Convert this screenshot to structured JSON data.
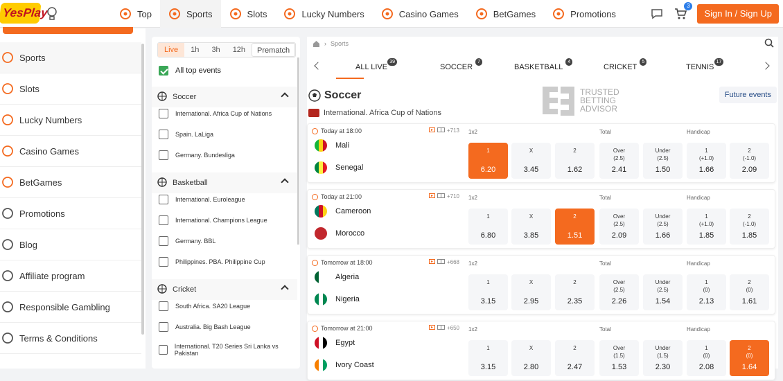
{
  "header": {
    "logo": "YesPlay",
    "nav": [
      {
        "label": "Top",
        "icon": "fire-icon"
      },
      {
        "label": "Sports",
        "icon": "soccer-ball-icon"
      },
      {
        "label": "Slots",
        "icon": "slots-icon"
      },
      {
        "label": "Lucky Numbers",
        "icon": "lottery-balls-icon"
      },
      {
        "label": "Casino Games",
        "icon": "casino-icon"
      },
      {
        "label": "BetGames",
        "icon": "betgames-icon"
      },
      {
        "label": "Promotions",
        "icon": "megaphone-icon"
      }
    ],
    "cart_count": "3",
    "signin": "Sign In / Sign Up"
  },
  "sidebar": {
    "items": [
      {
        "label": "Sports"
      },
      {
        "label": "Slots"
      },
      {
        "label": "Lucky Numbers"
      },
      {
        "label": "Casino Games"
      },
      {
        "label": "BetGames"
      },
      {
        "label": "Promotions"
      },
      {
        "label": "Blog"
      },
      {
        "label": "Affiliate program"
      },
      {
        "label": "Responsible Gambling"
      },
      {
        "label": "Terms & Conditions"
      }
    ]
  },
  "filter": {
    "tabs": [
      "Live",
      "1h",
      "3h",
      "12h",
      "Prematch"
    ],
    "all_top": "All top events",
    "sports": [
      {
        "name": "Soccer",
        "leagues": [
          "International. Africa Cup of Nations",
          "Spain. LaLiga",
          "Germany. Bundesliga"
        ]
      },
      {
        "name": "Basketball",
        "leagues": [
          "International. Euroleague",
          "International. Champions League",
          "Germany. BBL",
          "Philippines. PBA. Philippine Cup"
        ]
      },
      {
        "name": "Cricket",
        "leagues": [
          "South Africa. SA20 League",
          "Australia. Big Bash League",
          "International. T20 Series Sri Lanka vs Pakistan"
        ]
      }
    ]
  },
  "main": {
    "crumb": "Sports",
    "tabs": [
      {
        "label": "ALL LIVE",
        "count": "39"
      },
      {
        "label": "SOCCER",
        "count": "7"
      },
      {
        "label": "BASKETBALL",
        "count": "4"
      },
      {
        "label": "CRICKET",
        "count": "5"
      },
      {
        "label": "TENNIS",
        "count": "17"
      }
    ],
    "sport_title": "Soccer",
    "tba": [
      "TRUSTED",
      "BETTING",
      "ADVISOR"
    ],
    "future": "Future events",
    "league": "International. Africa Cup of Nations",
    "markets": {
      "m1x2": "1x2",
      "total": "Total",
      "handicap": "Handicap"
    },
    "matches": [
      {
        "time": "Today at 18:00",
        "extra": "+713",
        "home": "Mali",
        "away": "Senegal",
        "odds": [
          [
            "1",
            "6.20"
          ],
          [
            "X",
            "3.45"
          ],
          [
            "2",
            "1.62"
          ],
          [
            "Over\n(2.5)",
            "2.41"
          ],
          [
            "Under\n(2.5)",
            "1.50"
          ],
          [
            "1\n(+1.0)",
            "1.66"
          ],
          [
            "2\n(-1.0)",
            "2.09"
          ]
        ],
        "sel": 0
      },
      {
        "time": "Today at 21:00",
        "extra": "+710",
        "home": "Cameroon",
        "away": "Morocco",
        "odds": [
          [
            "1",
            "6.80"
          ],
          [
            "X",
            "3.85"
          ],
          [
            "2",
            "1.51"
          ],
          [
            "Over\n(2.5)",
            "2.09"
          ],
          [
            "Under\n(2.5)",
            "1.66"
          ],
          [
            "1\n(+1.0)",
            "1.85"
          ],
          [
            "2\n(-1.0)",
            "1.85"
          ]
        ],
        "sel": 2
      },
      {
        "time": "Tomorrow at 18:00",
        "extra": "+668",
        "home": "Algeria",
        "away": "Nigeria",
        "odds": [
          [
            "1",
            "3.15"
          ],
          [
            "X",
            "2.95"
          ],
          [
            "2",
            "2.35"
          ],
          [
            "Over\n(2.5)",
            "2.26"
          ],
          [
            "Under\n(2.5)",
            "1.54"
          ],
          [
            "1\n(0)",
            "2.13"
          ],
          [
            "2\n(0)",
            "1.61"
          ]
        ],
        "sel": -1
      },
      {
        "time": "Tomorrow at 21:00",
        "extra": "+650",
        "home": "Egypt",
        "away": "Ivory Coast",
        "odds": [
          [
            "1",
            "3.15"
          ],
          [
            "X",
            "2.80"
          ],
          [
            "2",
            "2.47"
          ],
          [
            "Over\n(1.5)",
            "1.53"
          ],
          [
            "Under\n(1.5)",
            "2.30"
          ],
          [
            "1\n(0)",
            "2.08"
          ],
          [
            "2\n(0)",
            "1.64"
          ]
        ],
        "sel": 6
      }
    ]
  },
  "colors": {
    "accent": "#f46a1f",
    "brand_yellow": "#ffcc00"
  }
}
